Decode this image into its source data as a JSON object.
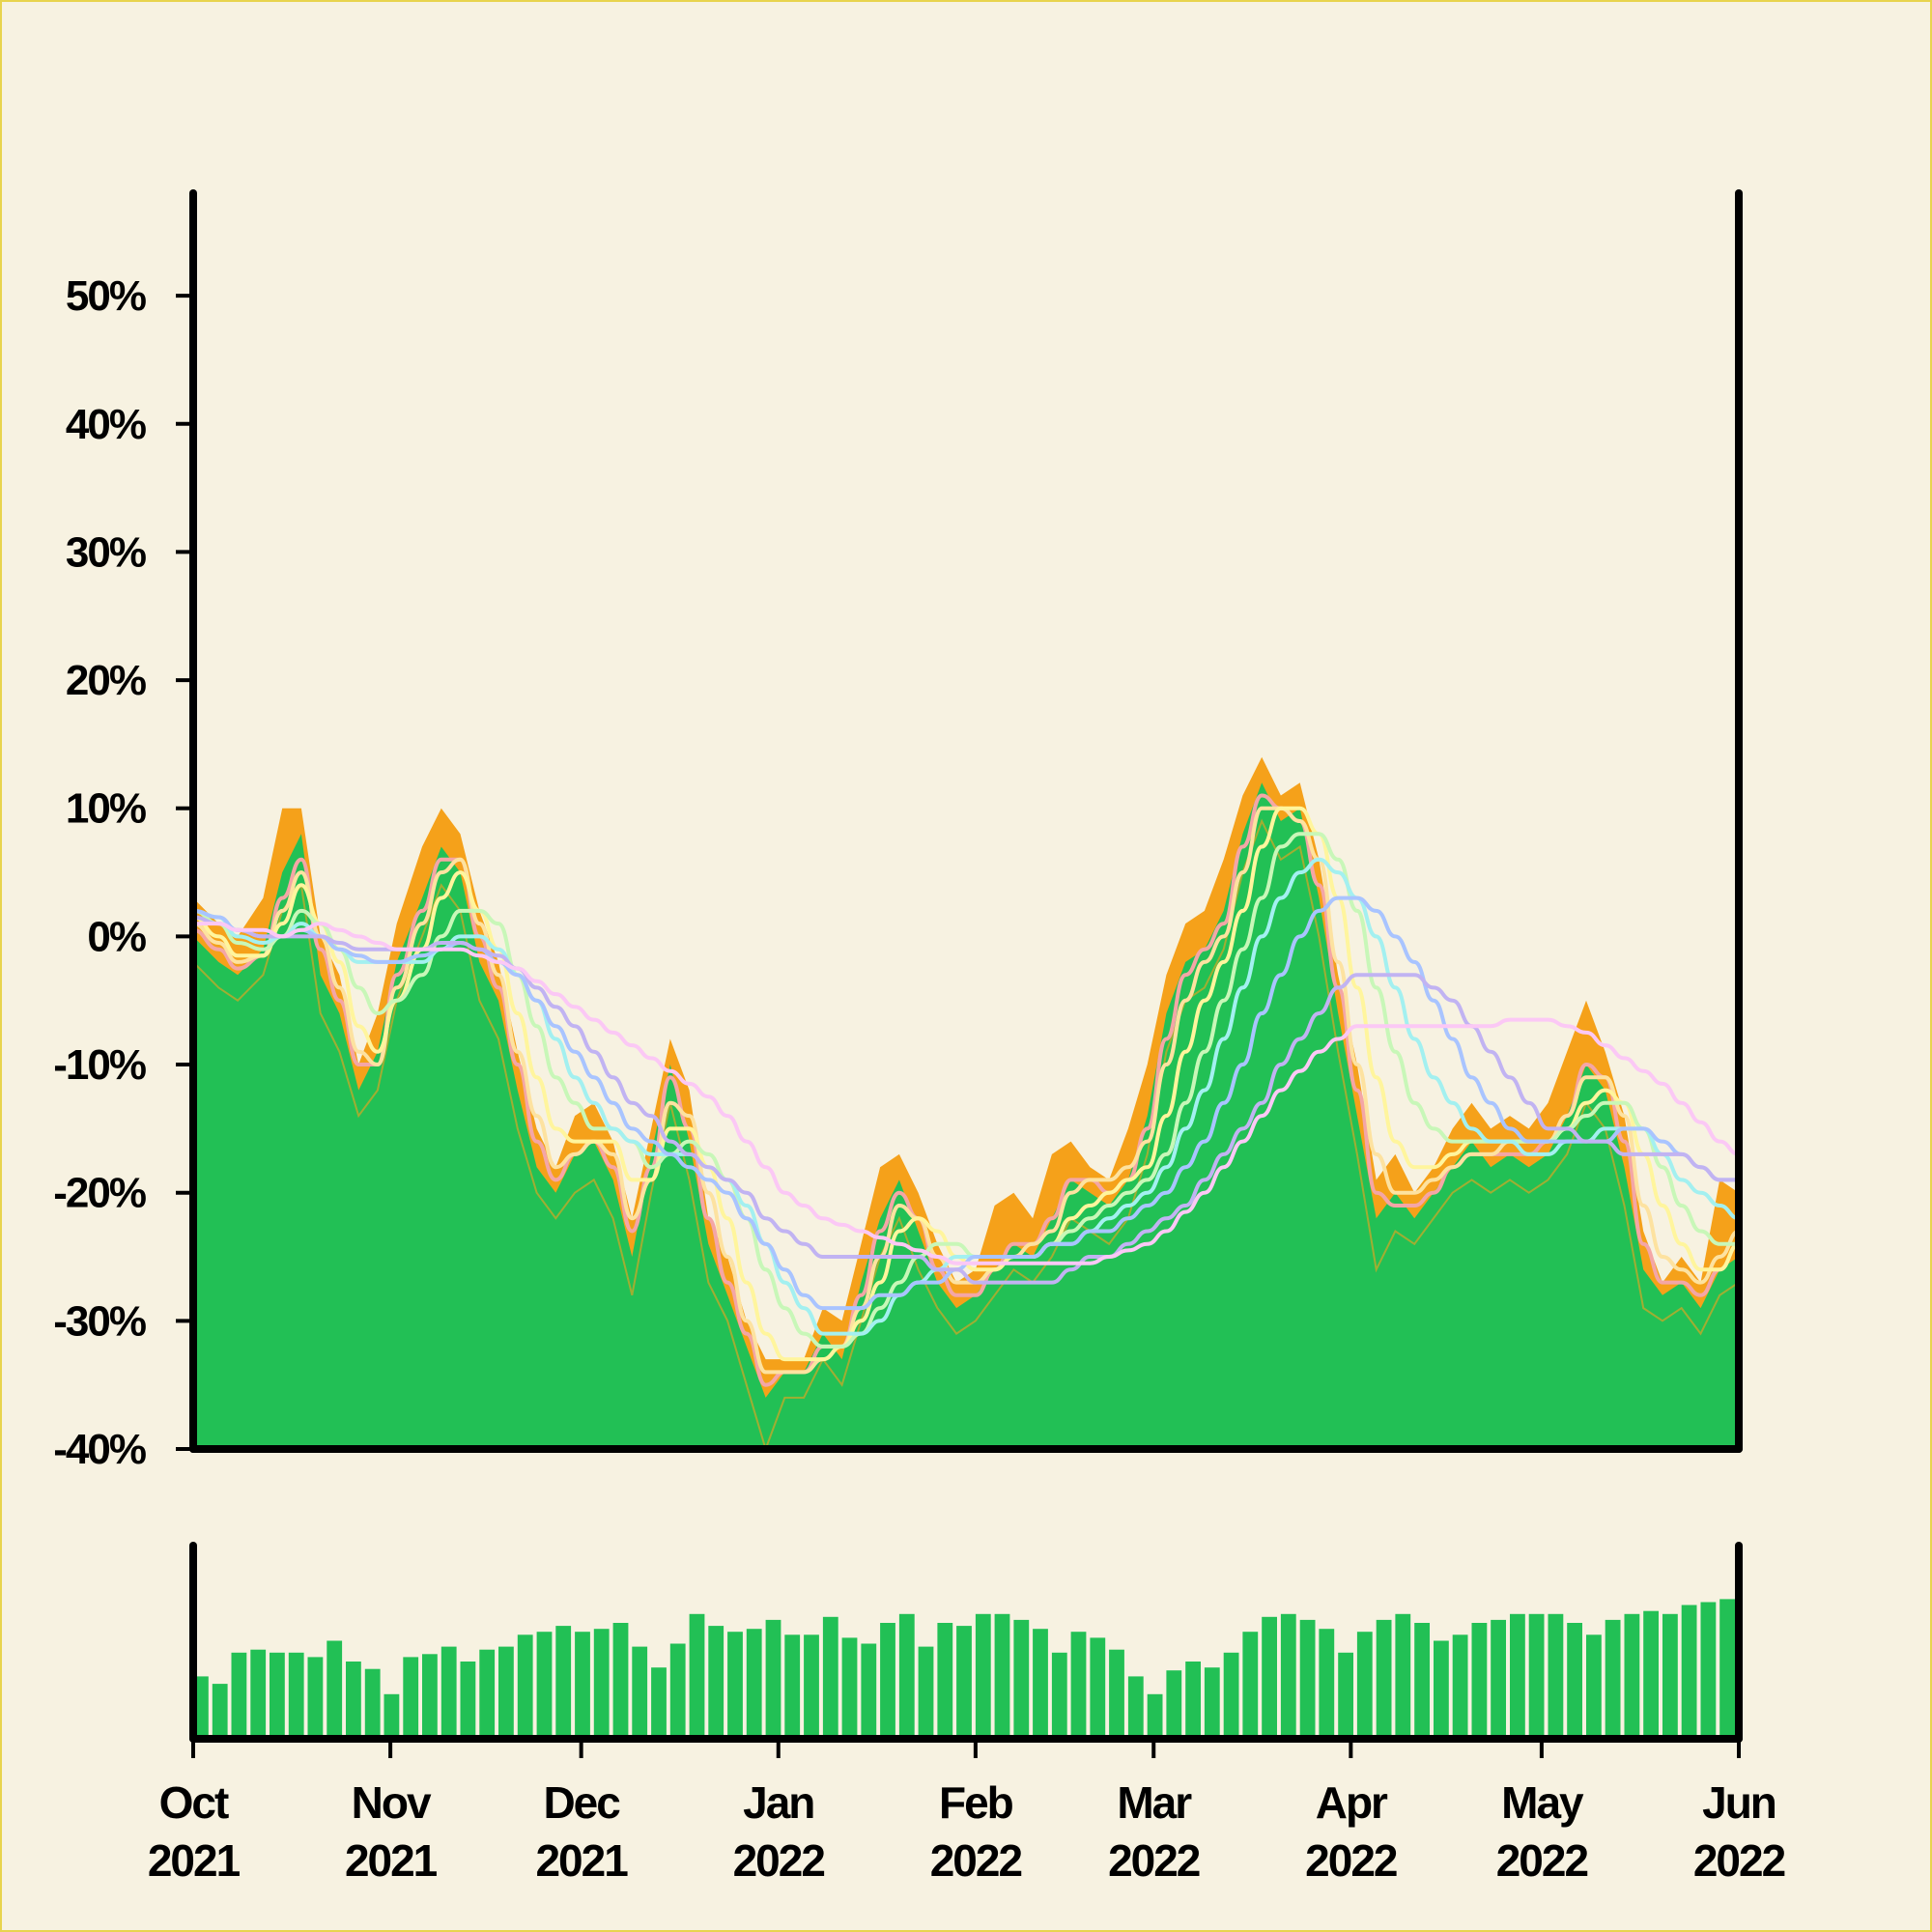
{
  "colors": {
    "background": "#f7f2e1",
    "page_border": "#e8d44d",
    "price_fill": "#22c055",
    "price_high": "#f5a11a",
    "axis": "#000000",
    "ma_colors": [
      "#f4a6a6",
      "#fde2a0",
      "#fff59d",
      "#c8f7b8",
      "#a3f0f0",
      "#a9c4ff",
      "#c1b3f2",
      "#fbc8f5"
    ]
  },
  "chart_data": {
    "type": "area",
    "title": "",
    "xlabel": "",
    "ylabel": "",
    "grid": false,
    "legend": "none",
    "y_unit": "%",
    "ylim": [
      -40,
      58
    ],
    "xlim": [
      "2021-10-01",
      "2022-06-01"
    ],
    "y_ticks": [
      "50%",
      "40%",
      "30%",
      "20%",
      "10%",
      "0%",
      "-10%",
      "-20%",
      "-30%",
      "-40%"
    ],
    "y_tick_values": [
      50,
      40,
      30,
      20,
      10,
      0,
      -10,
      -20,
      -30,
      -40
    ],
    "x_ticks": [
      {
        "month": "Oct",
        "year": "2021",
        "date": "2021-10-01"
      },
      {
        "month": "Nov",
        "year": "2021",
        "date": "2021-11-01"
      },
      {
        "month": "Dec",
        "year": "2021",
        "date": "2021-12-01"
      },
      {
        "month": "Jan",
        "year": "2022",
        "date": "2022-01-01"
      },
      {
        "month": "Feb",
        "year": "2022",
        "date": "2022-02-01"
      },
      {
        "month": "Mar",
        "year": "2022",
        "date": "2022-03-01"
      },
      {
        "month": "Apr",
        "year": "2022",
        "date": "2022-04-01"
      },
      {
        "month": "May",
        "year": "2022",
        "date": "2022-05-01"
      },
      {
        "month": "Jun",
        "year": "2022",
        "date": "2022-06-01"
      }
    ],
    "price": {
      "dates": [
        "2021-10-01",
        "2021-10-05",
        "2021-10-08",
        "2021-10-12",
        "2021-10-15",
        "2021-10-18",
        "2021-10-21",
        "2021-10-24",
        "2021-10-27",
        "2021-10-30",
        "2021-11-02",
        "2021-11-06",
        "2021-11-09",
        "2021-11-12",
        "2021-11-15",
        "2021-11-18",
        "2021-11-21",
        "2021-11-24",
        "2021-11-27",
        "2021-11-30",
        "2021-12-03",
        "2021-12-06",
        "2021-12-09",
        "2021-12-12",
        "2021-12-15",
        "2021-12-18",
        "2021-12-21",
        "2021-12-24",
        "2021-12-27",
        "2021-12-30",
        "2022-01-02",
        "2022-01-05",
        "2022-01-08",
        "2022-01-11",
        "2022-01-14",
        "2022-01-17",
        "2022-01-20",
        "2022-01-23",
        "2022-01-26",
        "2022-01-29",
        "2022-02-01",
        "2022-02-04",
        "2022-02-07",
        "2022-02-10",
        "2022-02-13",
        "2022-02-16",
        "2022-02-19",
        "2022-02-22",
        "2022-02-25",
        "2022-02-28",
        "2022-03-03",
        "2022-03-06",
        "2022-03-09",
        "2022-03-12",
        "2022-03-15",
        "2022-03-18",
        "2022-03-21",
        "2022-03-24",
        "2022-03-27",
        "2022-03-30",
        "2022-04-02",
        "2022-04-05",
        "2022-04-08",
        "2022-04-11",
        "2022-04-14",
        "2022-04-17",
        "2022-04-20",
        "2022-04-23",
        "2022-04-26",
        "2022-04-29",
        "2022-05-02",
        "2022-05-05",
        "2022-05-08",
        "2022-05-11",
        "2022-05-14",
        "2022-05-17",
        "2022-05-20",
        "2022-05-23",
        "2022-05-26",
        "2022-05-29",
        "2022-06-01"
      ],
      "close": [
        0,
        -2,
        -3,
        -1,
        5,
        8,
        -3,
        -6,
        -12,
        -9,
        -2,
        3,
        7,
        5,
        -2,
        -5,
        -12,
        -18,
        -20,
        -17,
        -16,
        -19,
        -25,
        -17,
        -10,
        -16,
        -24,
        -28,
        -32,
        -36,
        -34,
        -34,
        -31,
        -33,
        -27,
        -22,
        -19,
        -23,
        -27,
        -29,
        -28,
        -26,
        -24,
        -25,
        -22,
        -19,
        -20,
        -21,
        -19,
        -14,
        -6,
        -2,
        -1,
        2,
        8,
        12,
        9,
        10,
        3,
        -6,
        -14,
        -22,
        -20,
        -22,
        -20,
        -18,
        -16,
        -18,
        -17,
        -18,
        -17,
        -14,
        -10,
        -12,
        -18,
        -26,
        -28,
        -27,
        -29,
        -26,
        -25
      ],
      "high": [
        3,
        1,
        0,
        3,
        10,
        10,
        0,
        -3,
        -10,
        -6,
        1,
        7,
        10,
        8,
        2,
        -2,
        -9,
        -15,
        -18,
        -14,
        -13,
        -16,
        -22,
        -15,
        -8,
        -12,
        -22,
        -25,
        -30,
        -33,
        -33,
        -33,
        -29,
        -30,
        -24,
        -18,
        -17,
        -20,
        -24,
        -27,
        -26,
        -21,
        -20,
        -22,
        -17,
        -16,
        -18,
        -19,
        -15,
        -10,
        -3,
        1,
        2,
        6,
        11,
        14,
        11,
        12,
        6,
        -3,
        -10,
        -19,
        -17,
        -20,
        -18,
        -15,
        -13,
        -15,
        -14,
        -15,
        -13,
        -9,
        -5,
        -9,
        -14,
        -23,
        -27,
        -25,
        -27,
        -19,
        -20
      ],
      "low": [
        -2,
        -4,
        -5,
        -3,
        2,
        4,
        -6,
        -9,
        -14,
        -12,
        -5,
        0,
        4,
        2,
        -5,
        -8,
        -15,
        -20,
        -22,
        -20,
        -19,
        -22,
        -28,
        -20,
        -13,
        -19,
        -27,
        -30,
        -35,
        -40,
        -36,
        -36,
        -33,
        -35,
        -30,
        -25,
        -22,
        -26,
        -29,
        -31,
        -30,
        -28,
        -26,
        -27,
        -25,
        -22,
        -23,
        -24,
        -22,
        -17,
        -9,
        -5,
        -4,
        -1,
        5,
        9,
        6,
        7,
        0,
        -9,
        -17,
        -26,
        -23,
        -24,
        -22,
        -20,
        -19,
        -20,
        -19,
        -20,
        -19,
        -17,
        -13,
        -15,
        -21,
        -29,
        -30,
        -29,
        -31,
        -28,
        -27
      ]
    },
    "moving_averages": [
      {
        "values": [
          0.5,
          -1,
          -2.5,
          -1.5,
          3,
          6,
          -1,
          -5,
          -10,
          -10,
          -3,
          2,
          6,
          6,
          0,
          -4,
          -10,
          -16,
          -19,
          -17,
          -16,
          -18,
          -23,
          -18,
          -11,
          -15,
          -22,
          -27,
          -31,
          -35,
          -34,
          -34,
          -32,
          -32,
          -28,
          -23,
          -20,
          -22,
          -26,
          -28,
          -28,
          -26,
          -24,
          -24,
          -22,
          -19,
          -19,
          -20,
          -19,
          -15,
          -8,
          -3,
          -1,
          1,
          7,
          11,
          10,
          9,
          4,
          -4,
          -12,
          -20,
          -21,
          -21,
          -20,
          -18,
          -17,
          -17,
          -17,
          -17,
          -16,
          -14,
          -10,
          -11,
          -16,
          -24,
          -27,
          -27,
          -28,
          -26,
          -24
        ]
      },
      {
        "values": [
          1,
          -0.5,
          -2,
          -1.5,
          2,
          5,
          0,
          -4,
          -9,
          -10,
          -4,
          1,
          5,
          6,
          1,
          -3,
          -9,
          -14,
          -18,
          -17,
          -16,
          -17,
          -22,
          -19,
          -13,
          -14,
          -20,
          -25,
          -30,
          -34,
          -34,
          -34,
          -33,
          -32,
          -29,
          -25,
          -21,
          -22,
          -25,
          -27,
          -27,
          -26,
          -25,
          -24,
          -23,
          -20,
          -19,
          -19,
          -18,
          -16,
          -10,
          -5,
          -2,
          0,
          5,
          10,
          10,
          9,
          6,
          -2,
          -10,
          -17,
          -20,
          -20,
          -19,
          -18,
          -17,
          -17,
          -16,
          -16,
          -16,
          -14,
          -11,
          -11,
          -14,
          -21,
          -25,
          -26,
          -27,
          -25,
          -23
        ]
      },
      {
        "values": [
          1.5,
          0,
          -1.5,
          -1.5,
          1,
          4,
          1,
          -2,
          -7,
          -9,
          -5,
          -1,
          3,
          5,
          2,
          -1,
          -6,
          -11,
          -15,
          -16,
          -16,
          -16,
          -19,
          -19,
          -15,
          -15,
          -18,
          -22,
          -27,
          -31,
          -33,
          -33,
          -33,
          -32,
          -30,
          -27,
          -23,
          -22,
          -23,
          -25,
          -26,
          -26,
          -25,
          -25,
          -24,
          -22,
          -21,
          -20,
          -19,
          -18,
          -14,
          -9,
          -5,
          -2,
          2,
          7,
          10,
          10,
          8,
          3,
          -4,
          -11,
          -16,
          -18,
          -18,
          -17,
          -16,
          -16,
          -16,
          -16,
          -16,
          -15,
          -13,
          -12,
          -13,
          -17,
          -21,
          -24,
          -26,
          -26,
          -24
        ]
      },
      {
        "values": [
          2,
          1,
          -0.5,
          -1,
          0,
          2,
          1,
          -1,
          -4,
          -6,
          -5,
          -3,
          0,
          2,
          2,
          1,
          -3,
          -7,
          -11,
          -13,
          -15,
          -15,
          -16,
          -18,
          -17,
          -16,
          -17,
          -19,
          -22,
          -26,
          -29,
          -31,
          -32,
          -32,
          -31,
          -29,
          -27,
          -25,
          -24,
          -24,
          -25,
          -25,
          -25,
          -25,
          -24,
          -23,
          -22,
          -21,
          -20,
          -19,
          -17,
          -13,
          -9,
          -5,
          -1,
          3,
          7,
          8,
          8,
          6,
          2,
          -4,
          -9,
          -13,
          -15,
          -16,
          -16,
          -16,
          -16,
          -16,
          -16,
          -15,
          -14,
          -13,
          -13,
          -15,
          -18,
          -21,
          -23,
          -24,
          -24
        ]
      },
      {
        "values": [
          2,
          1.5,
          0,
          -0.5,
          0,
          1,
          0,
          -1,
          -2,
          -2,
          -2,
          -2,
          -1,
          0,
          0,
          -1,
          -3,
          -5,
          -8,
          -11,
          -13,
          -15,
          -16,
          -17,
          -17,
          -17,
          -18,
          -19,
          -21,
          -24,
          -27,
          -29,
          -31,
          -31,
          -31,
          -30,
          -28,
          -27,
          -26,
          -25,
          -25,
          -25,
          -25,
          -25,
          -24,
          -24,
          -23,
          -22,
          -21,
          -20,
          -18,
          -15,
          -12,
          -8,
          -4,
          0,
          3,
          5,
          6,
          5,
          3,
          0,
          -4,
          -8,
          -11,
          -13,
          -15,
          -16,
          -16,
          -17,
          -17,
          -16,
          -16,
          -15,
          -15,
          -15,
          -17,
          -19,
          -20,
          -21,
          -22
        ]
      },
      {
        "values": [
          2,
          1.5,
          0.5,
          0,
          0,
          0.5,
          0,
          -1,
          -1.5,
          -2,
          -2,
          -1.5,
          -1,
          -0.5,
          -1,
          -2,
          -3,
          -5,
          -7,
          -9,
          -11,
          -13,
          -15,
          -16,
          -17,
          -18,
          -19,
          -20,
          -22,
          -24,
          -26,
          -28,
          -29,
          -29,
          -29,
          -28,
          -28,
          -27,
          -27,
          -26,
          -25,
          -25,
          -25,
          -25,
          -24,
          -24,
          -23,
          -23,
          -22,
          -21,
          -20,
          -18,
          -16,
          -13,
          -10,
          -6,
          -3,
          0,
          2,
          3,
          3,
          2,
          0,
          -2,
          -5,
          -8,
          -11,
          -13,
          -15,
          -16,
          -16,
          -16,
          -16,
          -16,
          -15,
          -15,
          -16,
          -17,
          -18,
          -19,
          -19
        ]
      },
      {
        "values": [
          1.5,
          1,
          0.5,
          0,
          0,
          0,
          0,
          -0.5,
          -1,
          -1,
          -1,
          -1,
          -0.5,
          -0.5,
          -1,
          -1.5,
          -2.5,
          -4,
          -5.5,
          -7,
          -9,
          -11,
          -13,
          -14,
          -16,
          -17,
          -18,
          -19,
          -20,
          -22,
          -23,
          -24,
          -25,
          -25,
          -25,
          -25,
          -25,
          -25,
          -26,
          -26,
          -27,
          -27,
          -27,
          -27,
          -27,
          -26,
          -25,
          -25,
          -24,
          -23,
          -22,
          -21,
          -19,
          -17,
          -15,
          -13,
          -10,
          -8,
          -6,
          -4,
          -3,
          -3,
          -3,
          -3,
          -4,
          -5,
          -7,
          -9,
          -11,
          -13,
          -15,
          -15,
          -16,
          -16,
          -17,
          -17,
          -17,
          -17,
          -18,
          -19,
          -19
        ]
      },
      {
        "values": [
          1,
          1,
          0.5,
          0.5,
          0,
          0.5,
          1,
          0.5,
          0,
          -0.5,
          -1,
          -1,
          -1,
          -1,
          -1.5,
          -2,
          -2.5,
          -3.5,
          -4.5,
          -5.5,
          -6.5,
          -7.5,
          -8.5,
          -9.5,
          -10.5,
          -11.5,
          -12.5,
          -14,
          -16,
          -18,
          -20,
          -21,
          -22,
          -22.5,
          -23,
          -23.5,
          -24,
          -24.5,
          -25,
          -25.5,
          -25.5,
          -25.5,
          -25.5,
          -25.5,
          -25.5,
          -25.5,
          -25.5,
          -25,
          -24.5,
          -24,
          -23,
          -21.5,
          -20,
          -18,
          -16,
          -14,
          -12,
          -10.5,
          -9,
          -8,
          -7,
          -7,
          -7,
          -7,
          -7,
          -7,
          -7,
          -7,
          -6.5,
          -6.5,
          -6.5,
          -7,
          -7.5,
          -8.5,
          -9.5,
          -10.5,
          -11.5,
          -13,
          -14.5,
          -16,
          -17
        ]
      }
    ],
    "volume": {
      "ylim": [
        0,
        130
      ],
      "values": [
        42,
        37,
        58,
        60,
        58,
        58,
        55,
        66,
        52,
        47,
        30,
        55,
        57,
        62,
        52,
        60,
        62,
        70,
        72,
        76,
        72,
        74,
        78,
        62,
        48,
        64,
        84,
        76,
        72,
        74,
        80,
        70,
        70,
        82,
        68,
        64,
        78,
        84,
        62,
        78,
        76,
        84,
        84,
        80,
        74,
        58,
        72,
        68,
        60,
        42,
        30,
        46,
        52,
        48,
        58,
        72,
        82,
        84,
        80,
        74,
        58,
        72,
        80,
        84,
        78,
        66,
        70,
        78,
        80,
        84,
        84,
        84,
        78,
        70,
        80,
        84,
        86,
        84,
        90,
        92,
        94
      ]
    }
  }
}
